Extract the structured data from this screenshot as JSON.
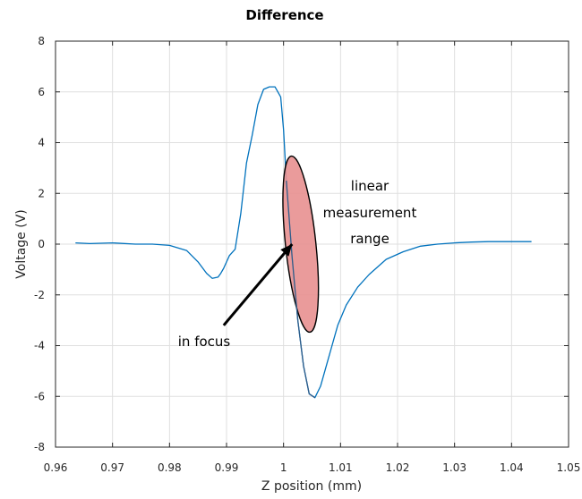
{
  "chart_data": {
    "type": "line",
    "title": "Difference",
    "xlabel": "Z position (mm)",
    "ylabel": "Voltage (V)",
    "xlim": [
      0.96,
      1.05
    ],
    "ylim": [
      -8,
      8
    ],
    "xticks": [
      "0.96",
      "0.97",
      "0.98",
      "0.99",
      "1",
      "1.01",
      "1.02",
      "1.03",
      "1.04",
      "1.05"
    ],
    "yticks": [
      "-8",
      "-6",
      "-4",
      "-2",
      "0",
      "2",
      "4",
      "6",
      "8"
    ],
    "grid": true,
    "series": [
      {
        "color": "#0072bd",
        "x": [
          0.9635,
          0.966,
          0.97,
          0.974,
          0.977,
          0.98,
          0.983,
          0.985,
          0.9865,
          0.9875,
          0.9885,
          0.989,
          0.9895,
          0.9905,
          0.9915,
          0.9925,
          0.9935,
          0.9945,
          0.9955,
          0.9965,
          0.9975,
          0.9985,
          0.9995,
          1.0,
          1.0005,
          1.0015,
          1.0025,
          1.0035,
          1.0045,
          1.0055,
          1.0065,
          1.0075,
          1.0085,
          1.0095,
          1.011,
          1.013,
          1.015,
          1.018,
          1.021,
          1.024,
          1.027,
          1.03,
          1.033,
          1.036,
          1.04,
          1.0435
        ],
        "y": [
          0.05,
          0.02,
          0.05,
          0.0,
          0.0,
          -0.05,
          -0.25,
          -0.7,
          -1.15,
          -1.35,
          -1.3,
          -1.15,
          -0.95,
          -0.45,
          -0.2,
          1.2,
          3.2,
          4.3,
          5.5,
          6.1,
          6.2,
          6.2,
          5.8,
          4.5,
          2.5,
          -0.5,
          -3.0,
          -4.8,
          -5.9,
          -6.05,
          -5.6,
          -4.8,
          -4.0,
          -3.2,
          -2.4,
          -1.7,
          -1.2,
          -0.6,
          -0.3,
          -0.08,
          0.0,
          0.05,
          0.08,
          0.1,
          0.1,
          0.1
        ]
      }
    ],
    "annotations": {
      "range_label": [
        "linear",
        "measurement",
        "range"
      ],
      "focus_label": "in focus",
      "ellipse_color": "#e89090",
      "ellipse_center": {
        "x": 1.003,
        "y": 0
      },
      "arrow_tip": {
        "x": 1.0015,
        "y": 0
      },
      "arrow_tail": {
        "x": 0.9895,
        "y": -3.2
      }
    }
  }
}
